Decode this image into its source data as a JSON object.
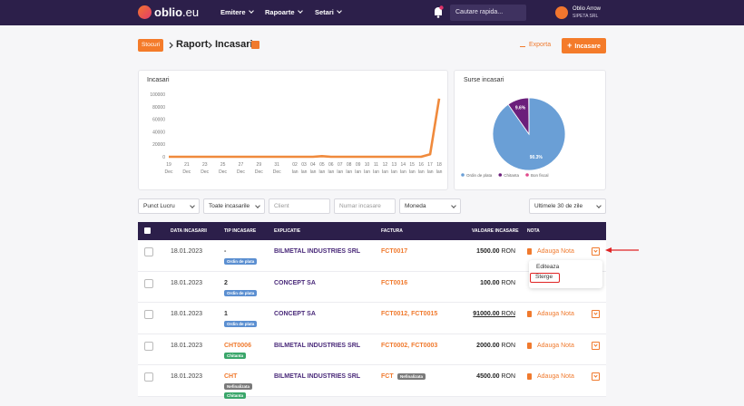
{
  "navbar": {
    "logo": {
      "name": "oblio",
      "suffix": ".eu"
    },
    "menu": [
      "Emitere",
      "Rapoarte",
      "Setari"
    ],
    "search_placeholder": "Cautare rapida...",
    "user": {
      "name": "Oblio Arrow",
      "company": "SIPETA SRL"
    }
  },
  "breadcrumb": {
    "tag": "Stocuri",
    "items": [
      "Raport",
      "Incasari"
    ]
  },
  "actions": {
    "export": "Exporta",
    "add": "Incasare"
  },
  "chart_data": [
    {
      "type": "line",
      "title": "Incasari",
      "categories": [
        {
          "day": "19",
          "month": "Dec"
        },
        null,
        {
          "day": "21",
          "month": "Dec"
        },
        null,
        {
          "day": "23",
          "month": "Dec"
        },
        null,
        {
          "day": "25",
          "month": "Dec"
        },
        null,
        {
          "day": "27",
          "month": "Dec"
        },
        null,
        {
          "day": "29",
          "month": "Dec"
        },
        null,
        {
          "day": "31",
          "month": "Dec"
        },
        null,
        {
          "day": "02",
          "month": "Ian"
        },
        {
          "day": "03",
          "month": "Ian"
        },
        {
          "day": "04",
          "month": "Ian"
        },
        {
          "day": "05",
          "month": "Ian"
        },
        {
          "day": "06",
          "month": "Ian"
        },
        {
          "day": "07",
          "month": "Ian"
        },
        {
          "day": "08",
          "month": "Ian"
        },
        {
          "day": "09",
          "month": "Ian"
        },
        {
          "day": "10",
          "month": "Ian"
        },
        {
          "day": "11",
          "month": "Ian"
        },
        {
          "day": "12",
          "month": "Ian"
        },
        {
          "day": "13",
          "month": "Ian"
        },
        {
          "day": "14",
          "month": "Ian"
        },
        {
          "day": "15",
          "month": "Ian"
        },
        {
          "day": "16",
          "month": "Ian"
        },
        {
          "day": "17",
          "month": "Ian"
        },
        {
          "day": "18",
          "month": "Ian"
        }
      ],
      "values": [
        0,
        0,
        0,
        0,
        0,
        0,
        0,
        0,
        0,
        0,
        0,
        0,
        0,
        0,
        0,
        0,
        0,
        1000,
        0,
        0,
        0,
        0,
        0,
        0,
        0,
        0,
        0,
        0,
        0,
        4000,
        93000
      ],
      "color": "#f08a3c",
      "ylim": [
        0,
        100000
      ],
      "yticks": [
        0,
        20000,
        40000,
        60000,
        80000,
        100000
      ],
      "grid": false
    },
    {
      "type": "pie",
      "title": "Surse incasari",
      "categories": [
        "Ordin de plata",
        "Chitanta",
        "Bon fiscal"
      ],
      "values": [
        90.3,
        9.6,
        0.1
      ],
      "value_labels": [
        "90.3%",
        "9.6%",
        null
      ],
      "colors": [
        "#6a9fd6",
        "#6b1f7b",
        "#e04a8c"
      ],
      "legend": "bottom"
    }
  ],
  "filters": {
    "fields": [
      {
        "label": "Punct Lucru",
        "kind": "select"
      },
      {
        "label": "Toate incasarile",
        "kind": "select"
      },
      {
        "label": "Client",
        "kind": "input"
      },
      {
        "label": "Numar incasare",
        "kind": "input"
      },
      {
        "label": "Moneda",
        "kind": "select"
      }
    ],
    "period": "Ultimele 30 de zile"
  },
  "table": {
    "columns": [
      "DATA INCASARII",
      "TIP INCASARE",
      "EXPLICATIE",
      "FACTURA",
      "VALOARE INCASARE",
      "NOTA"
    ],
    "rows": [
      {
        "date": "18.01.2023",
        "number": "-",
        "number_color": "#333333",
        "badges": [
          {
            "text": "Ordin de plata",
            "color": "#5b8fd1"
          }
        ],
        "explanation": "BILMETAL INDUSTRIES SRL",
        "invoices": "FCT0017",
        "value": "1500.00",
        "currency": "RON",
        "note": "Adauga Nota"
      },
      {
        "date": "18.01.2023",
        "number": "2",
        "number_color": "#333333",
        "badges": [
          {
            "text": "Ordin de plata",
            "color": "#5b8fd1"
          }
        ],
        "explanation": "CONCEPT SA",
        "invoices": "FCT0016",
        "value": "100.00",
        "currency": "RON"
      },
      {
        "date": "18.01.2023",
        "number": "1",
        "number_color": "#333333",
        "badges": [
          {
            "text": "Ordin de plata",
            "color": "#5b8fd1"
          }
        ],
        "explanation": "CONCEPT SA",
        "invoices": "FCT0012, FCT0015",
        "value": "91000.00",
        "currency": "RON",
        "underline": true,
        "note": "Adauga Nota"
      },
      {
        "date": "18.01.2023",
        "number": "CHT0006",
        "number_color": "#f07a2e",
        "badges": [
          {
            "text": "Chitanta",
            "color": "#3aa66a"
          }
        ],
        "explanation": "BILMETAL INDUSTRIES SRL",
        "invoices": "FCT0002, FCT0003",
        "value": "2000.00",
        "currency": "RON",
        "note": "Adauga Nota"
      },
      {
        "date": "18.01.2023",
        "number": "CHT",
        "number_color": "#f07a2e",
        "badges": [
          {
            "text": "Nefinalizata",
            "color": "#7a7a7a"
          },
          {
            "text": "Chitanta",
            "color": "#3aa66a"
          }
        ],
        "explanation": "BILMETAL INDUSTRIES SRL",
        "invoices": "FCT",
        "invoice_badge": {
          "text": "Nefinalizata",
          "color": "#7a7a7a"
        },
        "value": "4500.00",
        "currency": "RON",
        "note": "Adauga Nota"
      }
    ]
  },
  "dropdown": {
    "items": [
      "Editeaza",
      "Sterge"
    ]
  }
}
